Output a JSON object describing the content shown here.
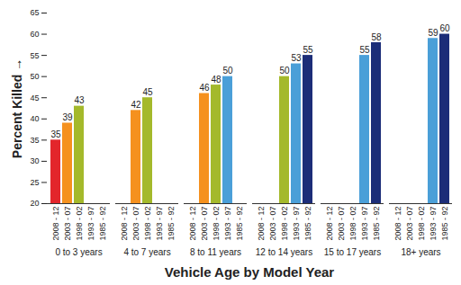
{
  "chart_data": {
    "type": "bar",
    "xlabel": "Vehicle Age by Model Year",
    "ylabel": "Percent Killed",
    "categories": [
      "0 to 3 years",
      "4 to 7 years",
      "8 to 11 years",
      "12 to 14 years",
      "15 to 17 years",
      "18+ years"
    ],
    "series": [
      {
        "name": "2008 - 12",
        "color": "#e3262b",
        "values": [
          35,
          null,
          null,
          null,
          null,
          null
        ]
      },
      {
        "name": "2003 - 07",
        "color": "#f5911e",
        "values": [
          39,
          42,
          46,
          null,
          null,
          null
        ]
      },
      {
        "name": "1998 - 02",
        "color": "#a4b92b",
        "values": [
          43,
          45,
          48,
          50,
          null,
          null
        ]
      },
      {
        "name": "1993 - 97",
        "color": "#4a9fd8",
        "values": [
          null,
          null,
          50,
          53,
          55,
          59
        ]
      },
      {
        "name": "1985 - 92",
        "color": "#1c2d78",
        "values": [
          null,
          null,
          null,
          55,
          58,
          60
        ]
      }
    ],
    "ylim": [
      20,
      65
    ],
    "yticks": [
      20,
      25,
      30,
      35,
      40,
      45,
      50,
      55,
      60,
      65
    ],
    "grid": false,
    "data_labels": true
  }
}
